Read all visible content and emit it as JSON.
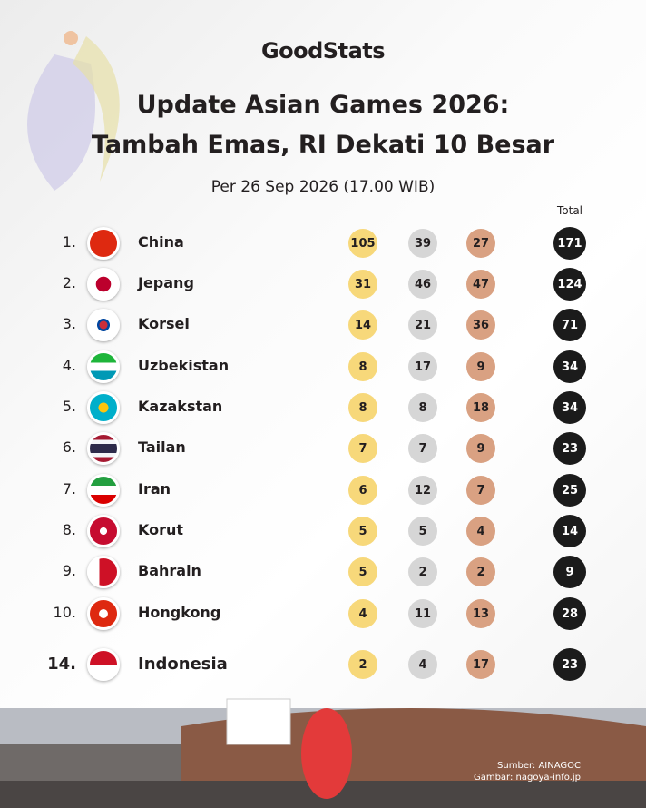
{
  "header": {
    "logo": "GoodStats",
    "title_line1": "Update Asian Games 2026:",
    "title_line2": "Tambah Emas, RI Dekati 10 Besar",
    "subtitle": "Per 26 Sep 2026 (17.00 WIB)"
  },
  "table": {
    "total_header": "Total",
    "rows": [
      {
        "rank": "1.",
        "country": "China",
        "gold": 105,
        "silver": 39,
        "bronze": 27,
        "total": 171
      },
      {
        "rank": "2.",
        "country": "Jepang",
        "gold": 31,
        "silver": 46,
        "bronze": 47,
        "total": 124
      },
      {
        "rank": "3.",
        "country": "Korsel",
        "gold": 14,
        "silver": 21,
        "bronze": 36,
        "total": 71
      },
      {
        "rank": "4.",
        "country": "Uzbekistan",
        "gold": 8,
        "silver": 17,
        "bronze": 9,
        "total": 34
      },
      {
        "rank": "5.",
        "country": "Kazakstan",
        "gold": 8,
        "silver": 8,
        "bronze": 18,
        "total": 34
      },
      {
        "rank": "6.",
        "country": "Tailan",
        "gold": 7,
        "silver": 7,
        "bronze": 9,
        "total": 23
      },
      {
        "rank": "7.",
        "country": "Iran",
        "gold": 6,
        "silver": 12,
        "bronze": 7,
        "total": 25
      },
      {
        "rank": "8.",
        "country": "Korut",
        "gold": 5,
        "silver": 5,
        "bronze": 4,
        "total": 14
      },
      {
        "rank": "9.",
        "country": "Bahrain",
        "gold": 5,
        "silver": 2,
        "bronze": 2,
        "total": 9
      },
      {
        "rank": "10.",
        "country": "Hongkong",
        "gold": 4,
        "silver": 11,
        "bronze": 13,
        "total": 28
      },
      {
        "rank": "14.",
        "country": "Indonesia",
        "gold": 2,
        "silver": 4,
        "bronze": 17,
        "total": 23
      }
    ]
  },
  "footer": {
    "source": "Sumber: AINAGOC",
    "image_credit": "Gambar: nagoya-info.jp"
  }
}
